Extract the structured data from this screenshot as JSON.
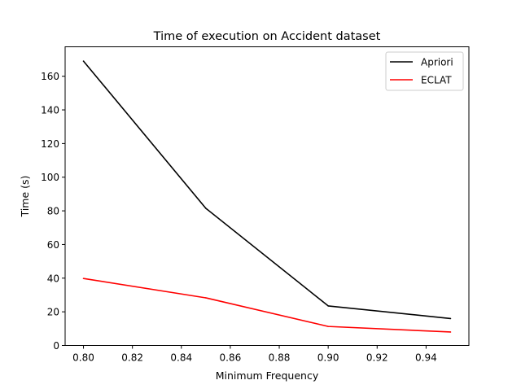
{
  "chart_data": {
    "type": "line",
    "title": "Time of execution on Accident dataset",
    "xlabel": "Minimum Frequency",
    "ylabel": "Time (s)",
    "x": [
      0.8,
      0.85,
      0.9,
      0.95
    ],
    "xlim": [
      0.7925,
      0.9575
    ],
    "ylim": [
      0,
      177.5
    ],
    "xticks": [
      0.8,
      0.82,
      0.84,
      0.86,
      0.88,
      0.9,
      0.92,
      0.94
    ],
    "xtick_labels": [
      "0.80",
      "0.82",
      "0.84",
      "0.86",
      "0.88",
      "0.90",
      "0.92",
      "0.94"
    ],
    "yticks": [
      0,
      20,
      40,
      60,
      80,
      100,
      120,
      140,
      160
    ],
    "ytick_labels": [
      "0",
      "20",
      "40",
      "60",
      "80",
      "100",
      "120",
      "140",
      "160"
    ],
    "grid": false,
    "legend_position": "upper right",
    "series": [
      {
        "name": "Apriori",
        "color": "#000000",
        "values": [
          169.0,
          81.5,
          23.5,
          16.0
        ]
      },
      {
        "name": "ECLAT",
        "color": "#ff0000",
        "values": [
          39.8,
          28.3,
          11.3,
          8.0
        ]
      }
    ]
  }
}
